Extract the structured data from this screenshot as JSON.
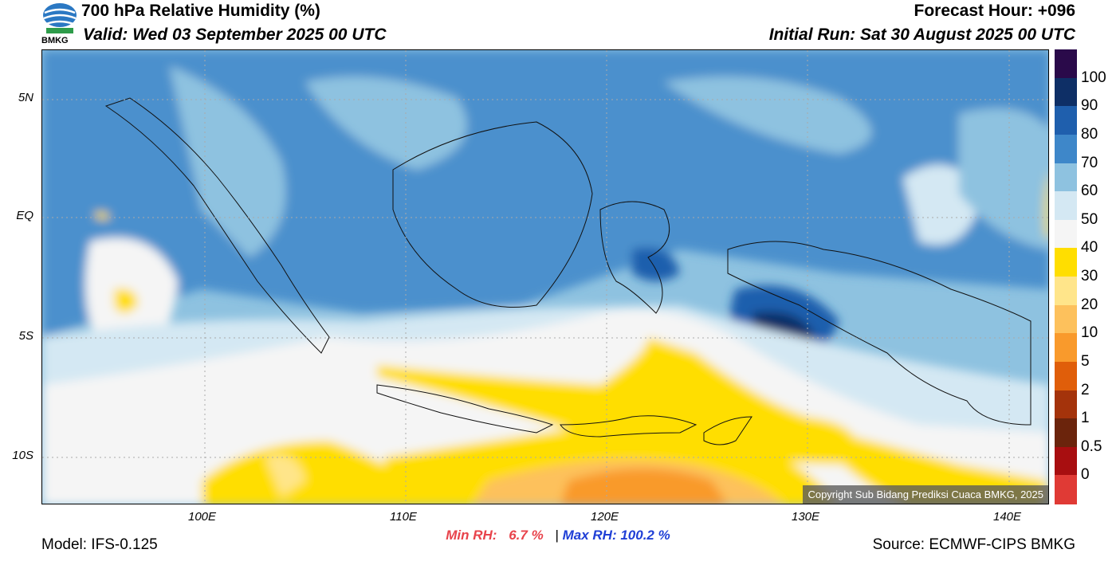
{
  "header": {
    "title": "700 hPa Relative Humidity (%)",
    "valid": "Valid: Wed 03 September 2025 00 UTC",
    "forecast_hour": "Forecast Hour: +096",
    "initial_run": "Initial Run: Sat 30 August 2025 00 UTC",
    "logo_text": "BMKG"
  },
  "map": {
    "lon_ticks": [
      "100E",
      "110E",
      "120E",
      "130E",
      "140E"
    ],
    "lat_ticks": [
      "5N",
      "EQ",
      "5S",
      "10S"
    ],
    "copyright": "Copyright Sub Bidang Prediksi Cuaca BMKG, 2025"
  },
  "colorbar": {
    "labels": [
      "100",
      "90",
      "80",
      "70",
      "60",
      "50",
      "40",
      "30",
      "20",
      "10",
      "5",
      "2",
      "1",
      "0.5",
      "0"
    ],
    "colors": [
      "#2a0a4a",
      "#0e2f66",
      "#1f5fad",
      "#3e87c9",
      "#8ec2e0",
      "#d4e8f3",
      "#f5f5f5",
      "#ffde00",
      "#ffe58a",
      "#fdc15c",
      "#f99a2c",
      "#e05e0a",
      "#a4330b",
      "#6b240c",
      "#a80e10",
      "#e03a35"
    ]
  },
  "stats": {
    "min_label": "Min RH:",
    "min_value": "6.7 %",
    "separator": "|",
    "max_label": "Max RH:",
    "max_value": "100.2 %"
  },
  "footer": {
    "model": "Model: IFS-0.125",
    "source": "Source: ECMWF-CIPS BMKG"
  }
}
